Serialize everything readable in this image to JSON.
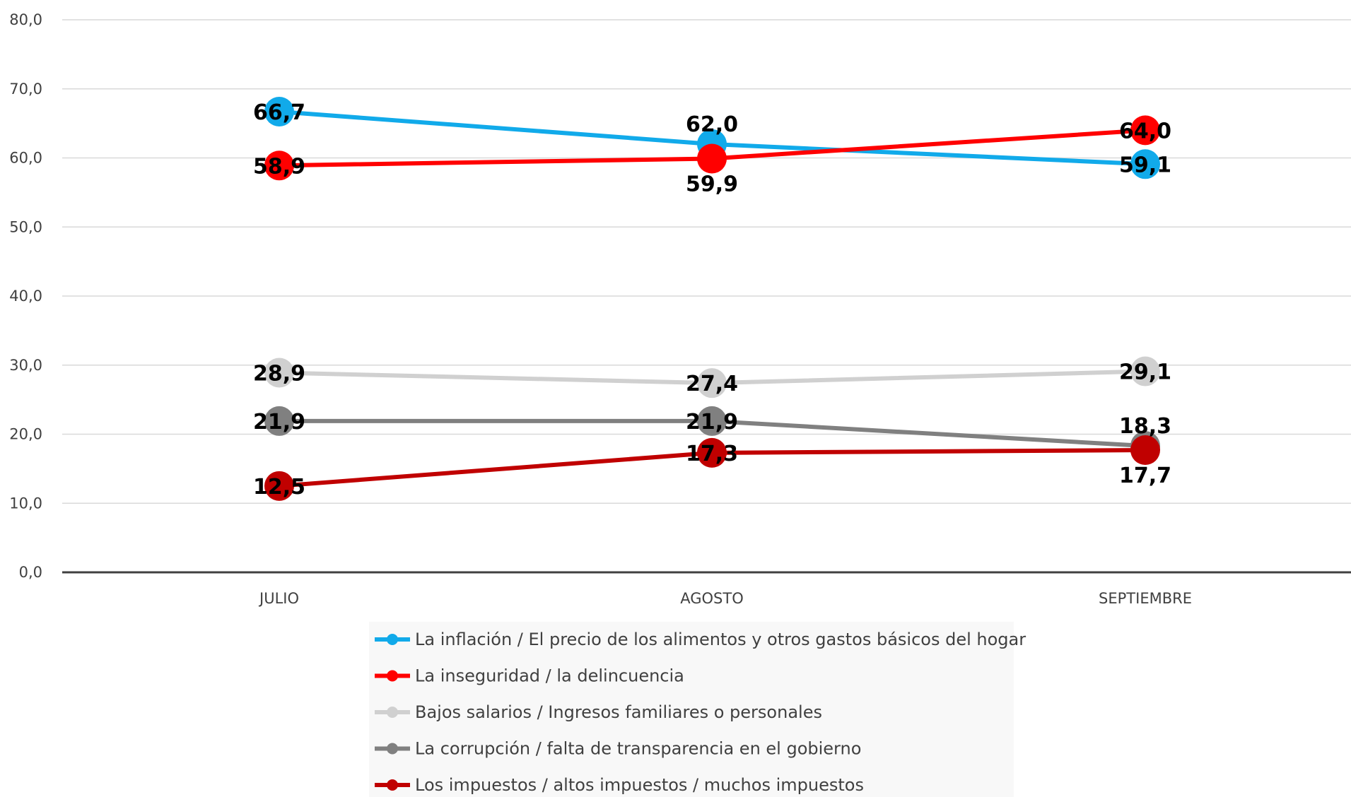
{
  "chart_data": {
    "type": "line",
    "categories": [
      "JULIO",
      "AGOSTO",
      "SEPTIEMBRE"
    ],
    "ylim": [
      0,
      80
    ],
    "yticks": [
      "0,0",
      "10,0",
      "20,0",
      "30,0",
      "40,0",
      "50,0",
      "60,0",
      "70,0",
      "80,0"
    ],
    "grid": true,
    "legend_position": "bottom",
    "series": [
      {
        "name": "La inflación / El precio de los alimentos y otros gastos básicos del hogar",
        "color": "#11aaea",
        "values": [
          66.7,
          62.0,
          59.1
        ],
        "labels": [
          "66,7",
          "62,0",
          "59,1"
        ],
        "label_pos": [
          "center",
          "above",
          "center"
        ]
      },
      {
        "name": "La inseguridad / la delincuencia",
        "color": "#ff0000",
        "values": [
          58.9,
          59.9,
          64.0
        ],
        "labels": [
          "58,9",
          "59,9",
          "64,0"
        ],
        "label_pos": [
          "center",
          "below",
          "center"
        ]
      },
      {
        "name": "Bajos salarios / Ingresos familiares o personales",
        "color": "#d0d0d0",
        "values": [
          28.9,
          27.4,
          29.1
        ],
        "labels": [
          "28,9",
          "27,4",
          "29,1"
        ],
        "label_pos": [
          "center",
          "center",
          "center"
        ]
      },
      {
        "name": "La corrupción / falta de transparencia en el gobierno",
        "color": "#808080",
        "values": [
          21.9,
          21.9,
          18.3
        ],
        "labels": [
          "21,9",
          "21,9",
          "18,3"
        ],
        "label_pos": [
          "center",
          "center",
          "above"
        ]
      },
      {
        "name": "Los impuestos / altos impuestos / muchos impuestos",
        "color": "#c00000",
        "values": [
          12.5,
          17.3,
          17.7
        ],
        "labels": [
          "12,5",
          "17,3",
          "17,7"
        ],
        "label_pos": [
          "center",
          "center",
          "below"
        ]
      }
    ]
  }
}
